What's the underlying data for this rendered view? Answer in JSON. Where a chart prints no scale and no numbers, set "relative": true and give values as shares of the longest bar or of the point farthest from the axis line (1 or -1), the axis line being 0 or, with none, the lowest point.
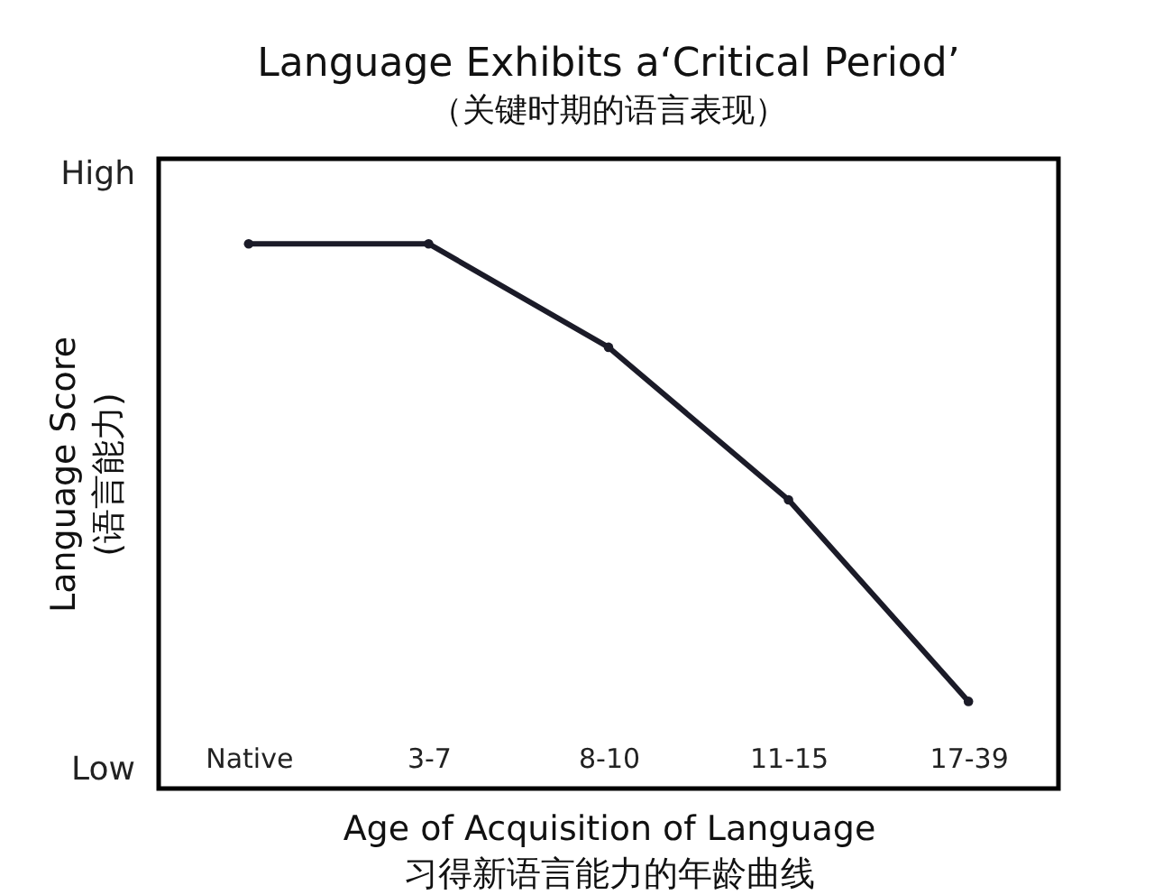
{
  "chart_data": {
    "type": "line",
    "title": "Language Exhibits a‘Critical Period’",
    "subtitle": "（关键时期的语言表现）",
    "xlabel": "Age of Acquisition of Language\n习得新语言能力的年龄曲线",
    "ylabel": "Language Score\n(语言能力)",
    "categories": [
      "Native",
      "3-7",
      "8-10",
      "11-15",
      "17-39"
    ],
    "series": [
      {
        "color": "#1b1b28",
        "values": [
          1,
          1,
          0.81,
          0.53,
          0.16
        ]
      }
    ],
    "relative": true,
    "marker": "circle",
    "line_style": "solid",
    "annotations": [
      "High",
      "Low"
    ]
  }
}
